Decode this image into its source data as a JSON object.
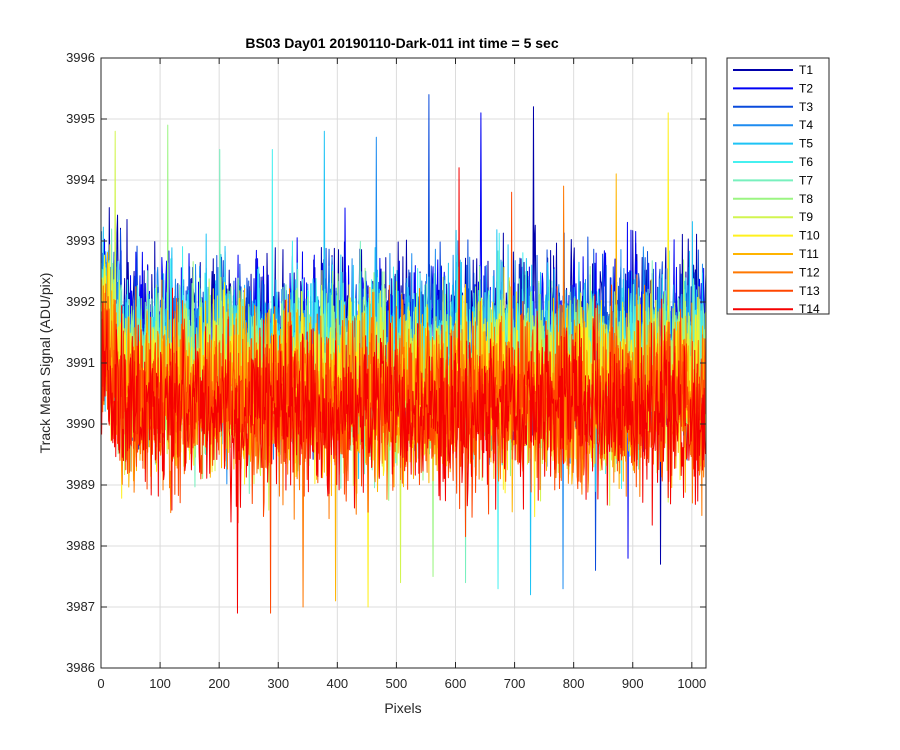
{
  "chart_data": {
    "type": "line",
    "title": "BS03 Day01 20190110-Dark-011 int time = 5 sec",
    "xlabel": "Pixels",
    "ylabel": "Track Mean Signal (ADU/pix)",
    "xlim": [
      0,
      1024
    ],
    "ylim": [
      3986,
      3996
    ],
    "xticks": [
      0,
      100,
      200,
      300,
      400,
      500,
      600,
      700,
      800,
      900,
      1000
    ],
    "yticks": [
      3986,
      3987,
      3988,
      3989,
      3990,
      3991,
      3992,
      3993,
      3994,
      3995,
      3996
    ],
    "grid": true,
    "legend_position": "outside-top-right",
    "n_points": 1024,
    "series": [
      {
        "name": "T1",
        "color": "#0000AA",
        "mean": 3991.5,
        "spread": 1.1,
        "peak_max": 3995.2,
        "peak_min": 3987.7
      },
      {
        "name": "T2",
        "color": "#0000F5",
        "mean": 3991.4,
        "spread": 1.1,
        "peak_max": 3995.1,
        "peak_min": 3987.8
      },
      {
        "name": "T3",
        "color": "#0A4BDC",
        "mean": 3991.3,
        "spread": 1.1,
        "peak_max": 3995.4,
        "peak_min": 3987.6
      },
      {
        "name": "T4",
        "color": "#1E8CF0",
        "mean": 3991.2,
        "spread": 1.1,
        "peak_max": 3994.7,
        "peak_min": 3987.3
      },
      {
        "name": "T5",
        "color": "#1EC3F5",
        "mean": 3991.1,
        "spread": 1.1,
        "peak_max": 3994.8,
        "peak_min": 3987.2
      },
      {
        "name": "T6",
        "color": "#46F0F0",
        "mean": 3991.0,
        "spread": 1.1,
        "peak_max": 3994.5,
        "peak_min": 3987.3
      },
      {
        "name": "T7",
        "color": "#78F0BE",
        "mean": 3990.9,
        "spread": 1.1,
        "peak_max": 3994.5,
        "peak_min": 3987.4
      },
      {
        "name": "T8",
        "color": "#9BF582",
        "mean": 3990.8,
        "spread": 1.1,
        "peak_max": 3994.9,
        "peak_min": 3987.5
      },
      {
        "name": "T9",
        "color": "#D2F550",
        "mean": 3990.7,
        "spread": 1.1,
        "peak_max": 3994.8,
        "peak_min": 3987.4
      },
      {
        "name": "T10",
        "color": "#FFF01E",
        "mean": 3990.6,
        "spread": 1.1,
        "peak_max": 3995.1,
        "peak_min": 3987.0
      },
      {
        "name": "T11",
        "color": "#FFB400",
        "mean": 3990.5,
        "spread": 1.1,
        "peak_max": 3994.1,
        "peak_min": 3987.1
      },
      {
        "name": "T12",
        "color": "#FF7800",
        "mean": 3990.4,
        "spread": 1.1,
        "peak_max": 3993.9,
        "peak_min": 3987.0
      },
      {
        "name": "T13",
        "color": "#FF4600",
        "mean": 3990.3,
        "spread": 1.1,
        "peak_max": 3993.8,
        "peak_min": 3986.9
      },
      {
        "name": "T14",
        "color": "#F50000",
        "mean": 3990.2,
        "spread": 1.1,
        "peak_max": 3994.2,
        "peak_min": 3986.9
      }
    ]
  }
}
